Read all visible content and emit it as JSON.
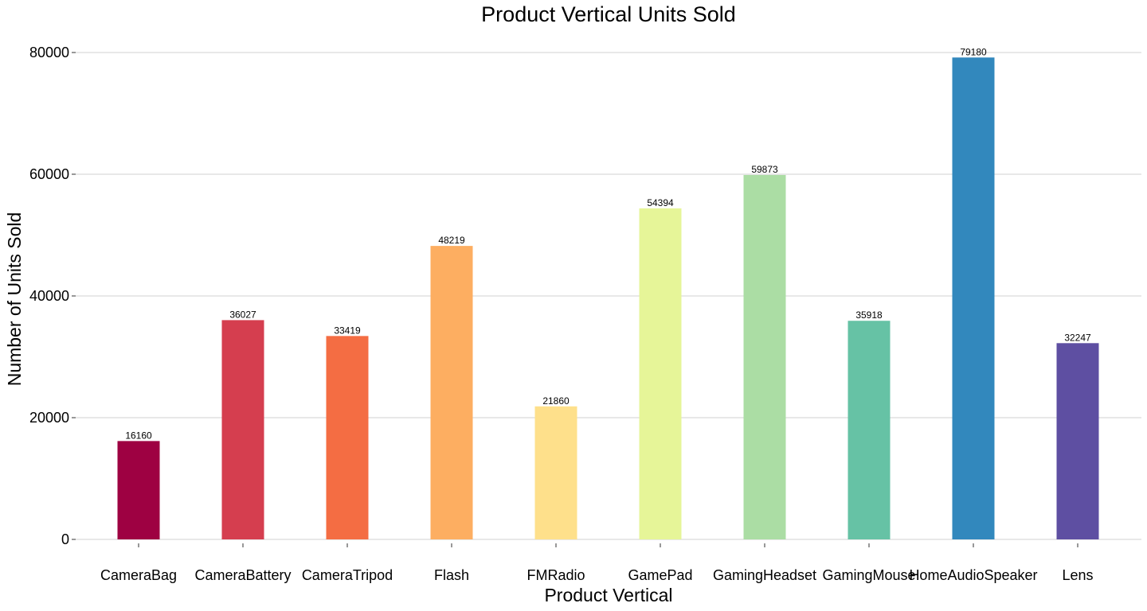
{
  "chart_data": {
    "type": "bar",
    "title": "Product Vertical Units Sold",
    "xlabel": "Product Vertical",
    "ylabel": "Number of Units Sold",
    "categories": [
      "CameraBag",
      "CameraBattery",
      "CameraTripod",
      "Flash",
      "FMRadio",
      "GamePad",
      "GamingHeadset",
      "GamingMouse",
      "HomeAudioSpeaker",
      "Lens"
    ],
    "values": [
      16160,
      36027,
      33419,
      48219,
      21860,
      54394,
      59873,
      35918,
      79180,
      32247
    ],
    "colors": [
      "#9e0142",
      "#d53e4f",
      "#f46d43",
      "#fdae61",
      "#fee08b",
      "#e6f598",
      "#abdda4",
      "#66c2a5",
      "#3288bd",
      "#5e4fa2"
    ],
    "yticks": [
      0,
      20000,
      40000,
      60000,
      80000
    ],
    "ylim": [
      0,
      80000
    ],
    "grid": true,
    "legend": "none"
  }
}
